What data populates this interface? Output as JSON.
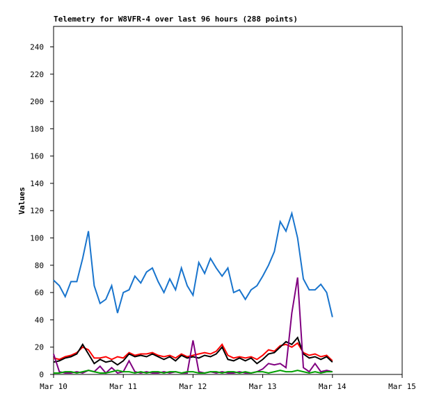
{
  "chart_data": {
    "type": "line",
    "title": "Telemetry for W8VFR-4 over last 96 hours (288 points)",
    "y_label": "Values",
    "x": [
      0,
      0.0833,
      0.1667,
      0.25,
      0.3333,
      0.4167,
      0.5,
      0.5833,
      0.6667,
      0.75,
      0.8333,
      0.9167,
      1,
      1.0833,
      1.1667,
      1.25,
      1.3333,
      1.4167,
      1.5,
      1.5833,
      1.6667,
      1.75,
      1.8333,
      1.9167,
      2,
      2.0833,
      2.1667,
      2.25,
      2.3333,
      2.4167,
      2.5,
      2.5833,
      2.6667,
      2.75,
      2.8333,
      2.9167,
      3,
      3.0833,
      3.1667,
      3.25,
      3.3333,
      3.4167,
      3.5,
      3.5833,
      3.6667,
      3.75,
      3.8333,
      3.9167,
      4
    ],
    "xlim": [
      0,
      5
    ],
    "xticks": [
      {
        "value": 0,
        "label": "Mar 10"
      },
      {
        "value": 1,
        "label": "Mar 11"
      },
      {
        "value": 2,
        "label": "Mar 12"
      },
      {
        "value": 3,
        "label": "Mar 13"
      },
      {
        "value": 4,
        "label": "Mar 14"
      },
      {
        "value": 5,
        "label": "Mar 15"
      }
    ],
    "ylim": [
      0,
      255
    ],
    "yticks": [
      0,
      20,
      40,
      60,
      80,
      100,
      120,
      140,
      160,
      180,
      200,
      220,
      240
    ],
    "series": [
      {
        "color": "#1874cd",
        "values": [
          69,
          65,
          57,
          68,
          68,
          85,
          105,
          65,
          52,
          55,
          65,
          45,
          60,
          62,
          72,
          67,
          75,
          78,
          68,
          60,
          70,
          62,
          78,
          65,
          58,
          82,
          74,
          85,
          78,
          72,
          78,
          60,
          62,
          55,
          62,
          65,
          72,
          80,
          90,
          112,
          105,
          118,
          100,
          70,
          62,
          62,
          66,
          60,
          42
        ]
      },
      {
        "color": "#ff0000",
        "values": [
          12,
          11,
          13,
          14,
          16,
          20,
          18,
          12,
          12,
          13,
          11,
          13,
          12,
          16,
          14,
          15,
          15,
          16,
          14,
          13,
          14,
          12,
          15,
          13,
          14,
          15,
          16,
          15,
          17,
          22,
          14,
          12,
          13,
          12,
          13,
          11,
          14,
          18,
          17,
          21,
          22,
          20,
          23,
          16,
          14,
          15,
          13,
          14,
          10
        ]
      },
      {
        "color": "#000000",
        "values": [
          9,
          10,
          12,
          13,
          15,
          22,
          15,
          8,
          11,
          9,
          10,
          7,
          10,
          15,
          13,
          14,
          13,
          15,
          13,
          11,
          13,
          10,
          14,
          12,
          13,
          12,
          14,
          13,
          15,
          20,
          11,
          10,
          12,
          10,
          12,
          8,
          11,
          15,
          16,
          20,
          24,
          22,
          27,
          15,
          12,
          13,
          11,
          13,
          9
        ]
      },
      {
        "color": "#800080",
        "values": [
          15,
          2,
          1,
          1,
          2,
          1,
          3,
          2,
          6,
          1,
          5,
          1,
          2,
          10,
          2,
          1,
          2,
          1,
          1,
          2,
          1,
          2,
          1,
          1,
          25,
          2,
          1,
          2,
          1,
          2,
          1,
          1,
          2,
          1,
          1,
          2,
          4,
          8,
          7,
          8,
          5,
          45,
          71,
          5,
          2,
          8,
          2,
          3,
          2
        ]
      },
      {
        "color": "#00a000",
        "values": [
          1,
          1,
          2,
          2,
          1,
          2,
          3,
          2,
          1,
          1,
          2,
          3,
          2,
          2,
          1,
          2,
          1,
          2,
          2,
          1,
          2,
          2,
          1,
          2,
          2,
          1,
          1,
          2,
          2,
          1,
          2,
          2,
          1,
          2,
          1,
          2,
          2,
          1,
          2,
          3,
          2,
          2,
          3,
          2,
          1,
          2,
          1,
          2,
          2
        ]
      }
    ]
  }
}
